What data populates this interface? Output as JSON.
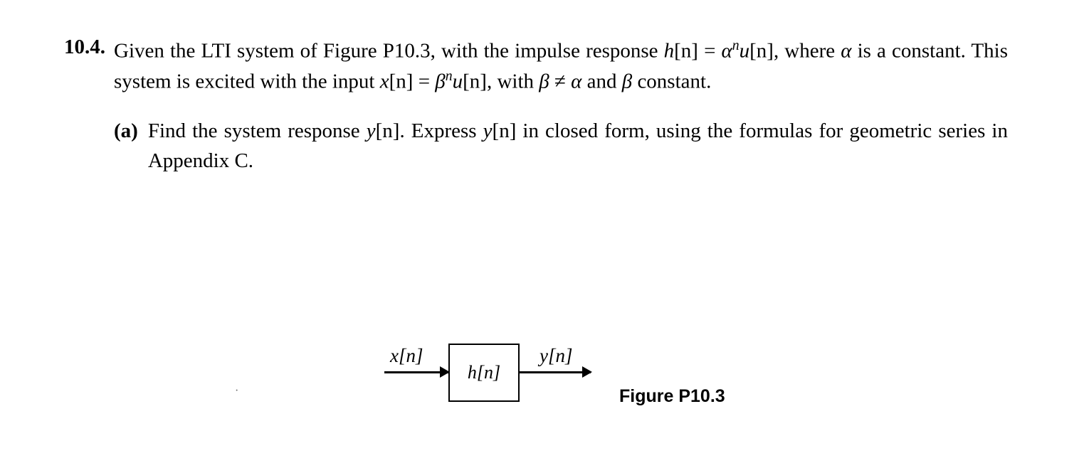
{
  "problem": {
    "number": "10.4.",
    "text_prefix": "Given the LTI system of Figure P10.3, with the impulse response ",
    "hn": "h",
    "hn_arg": "[n]",
    "eq1": " = ",
    "alpha": "α",
    "sup_n1": "n",
    "u1": "u",
    "u1_arg": "[n]",
    "comma1": ", where ",
    "alpha2": "α",
    "text_mid": " is a constant. This system is excited with the input ",
    "xn": "x",
    "xn_arg": "[n]",
    "eq2": " = ",
    "beta": "β",
    "sup_n2": "n",
    "u2": "u",
    "u2_arg": "[n]",
    "comma2": ", with ",
    "beta2": "β",
    "neq": " ≠ ",
    "alpha3": "α",
    "text_end": " and ",
    "beta3": "β",
    "text_last": " constant."
  },
  "part_a": {
    "label": "(a)",
    "text_prefix": "Find the system response ",
    "yn": "y",
    "yn_arg": "[n]",
    "text_mid1": ". Express ",
    "yn2": "y",
    "yn2_arg": "[n]",
    "text_end": " in closed form, using the formulas for geometric series in Appendix C."
  },
  "figure": {
    "x_label": "x[n]",
    "h_label": "h[n]",
    "y_label": "y[n]",
    "caption": "Figure P10.3"
  }
}
